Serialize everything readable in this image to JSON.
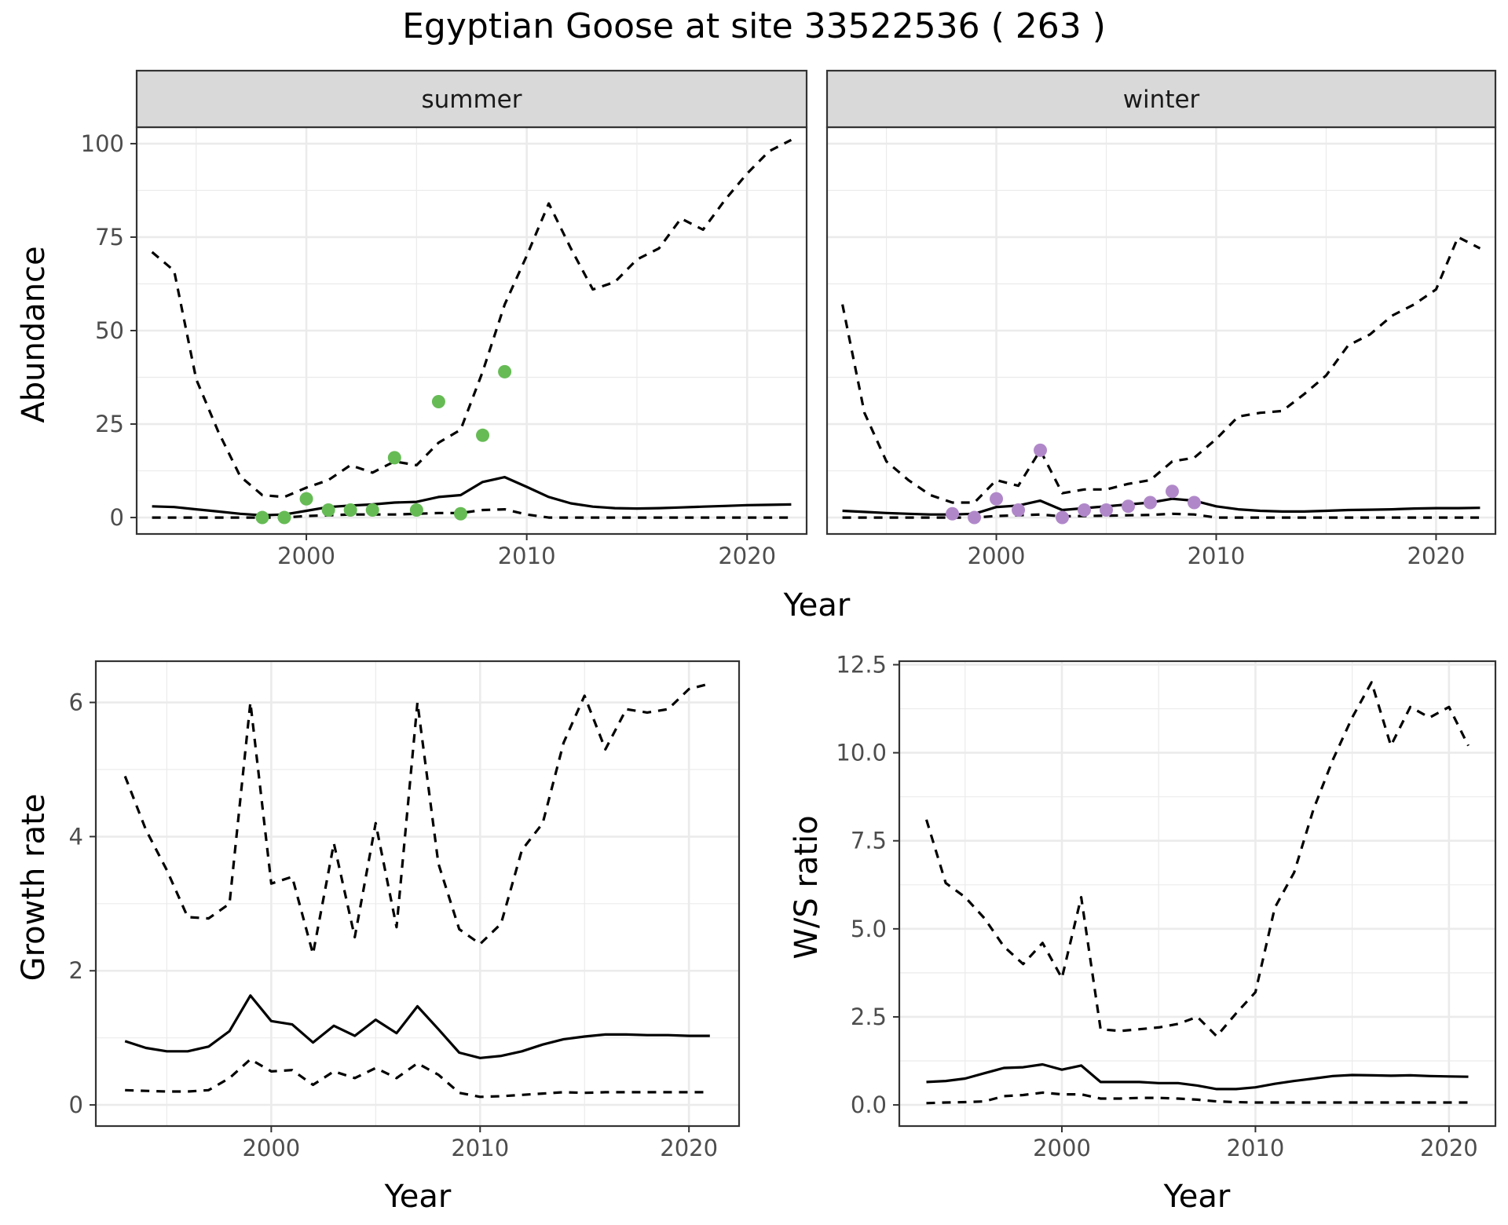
{
  "title": "Egyptian Goose at site 33522536 ( 263 )",
  "colors": {
    "summer_points": "#66bb55",
    "winter_points": "#b088c9",
    "lines": "#000000",
    "strip": "#d9d9d9",
    "grid": "#ebebeb"
  },
  "chart_data": [
    {
      "type": "line",
      "facet": "summer",
      "strip_label": "summer",
      "xlabel": "Year",
      "ylabel": "Abundance",
      "xlim": [
        1992.3,
        2022.7
      ],
      "ylim": [
        -4.4,
        104.4
      ],
      "xticks": [
        2000,
        2010,
        2020
      ],
      "yticks": [
        0,
        25,
        50,
        75,
        100
      ],
      "x": [
        1993,
        1994,
        1995,
        1996,
        1997,
        1998,
        1999,
        2000,
        2001,
        2002,
        2003,
        2004,
        2005,
        2006,
        2007,
        2008,
        2009,
        2010,
        2011,
        2012,
        2013,
        2014,
        2015,
        2016,
        2017,
        2018,
        2019,
        2020,
        2021,
        2022
      ],
      "series": [
        {
          "role": "estimate",
          "values": [
            3,
            2.8,
            2.2,
            1.6,
            1,
            0.6,
            0.8,
            1.8,
            2.8,
            3.2,
            3.5,
            4,
            4.2,
            5.5,
            6,
            9.5,
            10.8,
            8.2,
            5.5,
            3.8,
            2.9,
            2.5,
            2.4,
            2.5,
            2.7,
            2.9,
            3.1,
            3.3,
            3.4,
            3.5
          ]
        },
        {
          "role": "upper",
          "values": [
            71,
            66,
            37,
            23,
            11,
            6,
            5.5,
            8,
            10,
            14,
            12,
            15,
            14,
            20,
            23.5,
            39,
            57,
            70,
            84,
            72,
            61,
            63,
            69,
            72,
            80,
            77,
            85,
            92,
            98,
            101
          ]
        },
        {
          "role": "lower",
          "values": [
            0,
            0,
            0,
            0,
            0,
            0,
            0,
            0.4,
            0.6,
            0.8,
            0.8,
            0.8,
            1,
            1.2,
            1.2,
            2,
            2.2,
            0.8,
            0,
            0,
            0,
            0,
            0,
            0,
            0,
            0,
            0,
            0,
            0,
            0
          ]
        }
      ],
      "points": {
        "x": [
          1998,
          1999,
          2000,
          2001,
          2002,
          2003,
          2004,
          2005,
          2006,
          2007,
          2008,
          2009
        ],
        "y": [
          0,
          0,
          5,
          2,
          2,
          2,
          16,
          2,
          31,
          1,
          22,
          39
        ]
      }
    },
    {
      "type": "line",
      "facet": "winter",
      "strip_label": "winter",
      "xlabel": "Year",
      "ylabel": "Abundance",
      "xlim": [
        1992.3,
        2022.7
      ],
      "ylim": [
        -4.4,
        104.4
      ],
      "xticks": [
        2000,
        2010,
        2020
      ],
      "yticks": [
        0,
        25,
        50,
        75,
        100
      ],
      "x": [
        1993,
        1994,
        1995,
        1996,
        1997,
        1998,
        1999,
        2000,
        2001,
        2002,
        2003,
        2004,
        2005,
        2006,
        2007,
        2008,
        2009,
        2010,
        2011,
        2012,
        2013,
        2014,
        2015,
        2016,
        2017,
        2018,
        2019,
        2020,
        2021,
        2022
      ],
      "series": [
        {
          "role": "estimate",
          "values": [
            1.8,
            1.5,
            1.2,
            1,
            0.8,
            0.8,
            1,
            2.8,
            3.2,
            4.5,
            2,
            2.5,
            3,
            3.5,
            4,
            5,
            4.5,
            3,
            2.2,
            1.8,
            1.6,
            1.6,
            1.8,
            2,
            2.1,
            2.2,
            2.4,
            2.5,
            2.5,
            2.6
          ]
        },
        {
          "role": "upper",
          "values": [
            57,
            28,
            15,
            10,
            6,
            4,
            4,
            10,
            8.5,
            18,
            6.5,
            7.5,
            7.5,
            9,
            10,
            15,
            16,
            21,
            27,
            28,
            28.5,
            33,
            38,
            46,
            49,
            54,
            57,
            61,
            75,
            72
          ]
        },
        {
          "role": "lower",
          "values": [
            0,
            0,
            0,
            0,
            0,
            0,
            0,
            0.4,
            0.6,
            0.8,
            0.3,
            0.4,
            0.5,
            0.6,
            0.7,
            1,
            0.8,
            0,
            0,
            0,
            0,
            0,
            0,
            0,
            0,
            0,
            0,
            0,
            0,
            0
          ]
        }
      ],
      "points": {
        "x": [
          1998,
          1999,
          2000,
          2001,
          2002,
          2003,
          2004,
          2005,
          2006,
          2007,
          2008,
          2009
        ],
        "y": [
          1,
          0,
          5,
          2,
          18,
          0,
          2,
          2,
          3,
          4,
          7,
          4
        ]
      }
    },
    {
      "type": "line",
      "xlabel": "Year",
      "ylabel": "Growth rate",
      "xlim": [
        1991.6,
        2022.4
      ],
      "ylim": [
        -0.315,
        6.615
      ],
      "xticks": [
        2000,
        2010,
        2020
      ],
      "yticks": [
        0,
        2,
        4,
        6
      ],
      "x": [
        1993,
        1994,
        1995,
        1996,
        1997,
        1998,
        1999,
        2000,
        2001,
        2002,
        2003,
        2004,
        2005,
        2006,
        2007,
        2008,
        2009,
        2010,
        2011,
        2012,
        2013,
        2014,
        2015,
        2016,
        2017,
        2018,
        2019,
        2020,
        2021
      ],
      "series": [
        {
          "role": "estimate",
          "values": [
            0.95,
            0.85,
            0.8,
            0.8,
            0.87,
            1.1,
            1.63,
            1.25,
            1.2,
            0.93,
            1.18,
            1.03,
            1.27,
            1.07,
            1.47,
            1.13,
            0.78,
            0.7,
            0.73,
            0.8,
            0.9,
            0.98,
            1.02,
            1.05,
            1.05,
            1.04,
            1.04,
            1.03,
            1.03
          ]
        },
        {
          "role": "upper",
          "values": [
            4.9,
            4.1,
            3.5,
            2.8,
            2.78,
            3,
            6,
            3.3,
            3.4,
            2.25,
            3.9,
            2.5,
            4.2,
            2.65,
            6,
            3.6,
            2.62,
            2.4,
            2.7,
            3.8,
            4.2,
            5.4,
            6.1,
            5.3,
            5.9,
            5.85,
            5.9,
            6.2,
            6.28
          ]
        },
        {
          "role": "lower",
          "values": [
            0.22,
            0.21,
            0.2,
            0.2,
            0.22,
            0.4,
            0.68,
            0.5,
            0.52,
            0.3,
            0.5,
            0.4,
            0.55,
            0.4,
            0.62,
            0.45,
            0.18,
            0.12,
            0.13,
            0.15,
            0.17,
            0.19,
            0.18,
            0.19,
            0.19,
            0.19,
            0.19,
            0.19,
            0.19
          ]
        }
      ]
    },
    {
      "type": "line",
      "xlabel": "Year",
      "ylabel": "W/S ratio",
      "xlim": [
        1991.6,
        2022.4
      ],
      "ylim": [
        -0.6,
        12.6
      ],
      "xticks": [
        2000,
        2010,
        2020
      ],
      "yticks": [
        0.0,
        2.5,
        5.0,
        7.5,
        10.0,
        12.5
      ],
      "ytick_labels": [
        "0.0",
        "2.5",
        "5.0",
        "7.5",
        "10.0",
        "12.5"
      ],
      "x": [
        1993,
        1994,
        1995,
        1996,
        1997,
        1998,
        1999,
        2000,
        2001,
        2002,
        2003,
        2004,
        2005,
        2006,
        2007,
        2008,
        2009,
        2010,
        2011,
        2012,
        2013,
        2014,
        2015,
        2016,
        2017,
        2018,
        2019,
        2020,
        2021
      ],
      "series": [
        {
          "role": "estimate",
          "values": [
            0.65,
            0.68,
            0.75,
            0.9,
            1.05,
            1.07,
            1.15,
            1.0,
            1.12,
            0.65,
            0.65,
            0.65,
            0.62,
            0.62,
            0.55,
            0.45,
            0.45,
            0.5,
            0.6,
            0.68,
            0.75,
            0.82,
            0.85,
            0.84,
            0.83,
            0.84,
            0.82,
            0.81,
            0.8
          ]
        },
        {
          "role": "upper",
          "values": [
            8.1,
            6.3,
            5.9,
            5.3,
            4.5,
            4.0,
            4.6,
            3.6,
            5.9,
            2.15,
            2.1,
            2.15,
            2.2,
            2.3,
            2.5,
            1.95,
            2.6,
            3.2,
            5.6,
            6.6,
            8.4,
            9.8,
            11.0,
            12.0,
            10.2,
            11.3,
            11.0,
            11.3,
            10.2
          ]
        },
        {
          "role": "lower",
          "values": [
            0.05,
            0.07,
            0.08,
            0.1,
            0.25,
            0.28,
            0.35,
            0.3,
            0.3,
            0.18,
            0.18,
            0.2,
            0.2,
            0.18,
            0.15,
            0.1,
            0.08,
            0.07,
            0.07,
            0.07,
            0.07,
            0.07,
            0.07,
            0.07,
            0.07,
            0.07,
            0.07,
            0.07,
            0.07
          ]
        }
      ]
    }
  ]
}
